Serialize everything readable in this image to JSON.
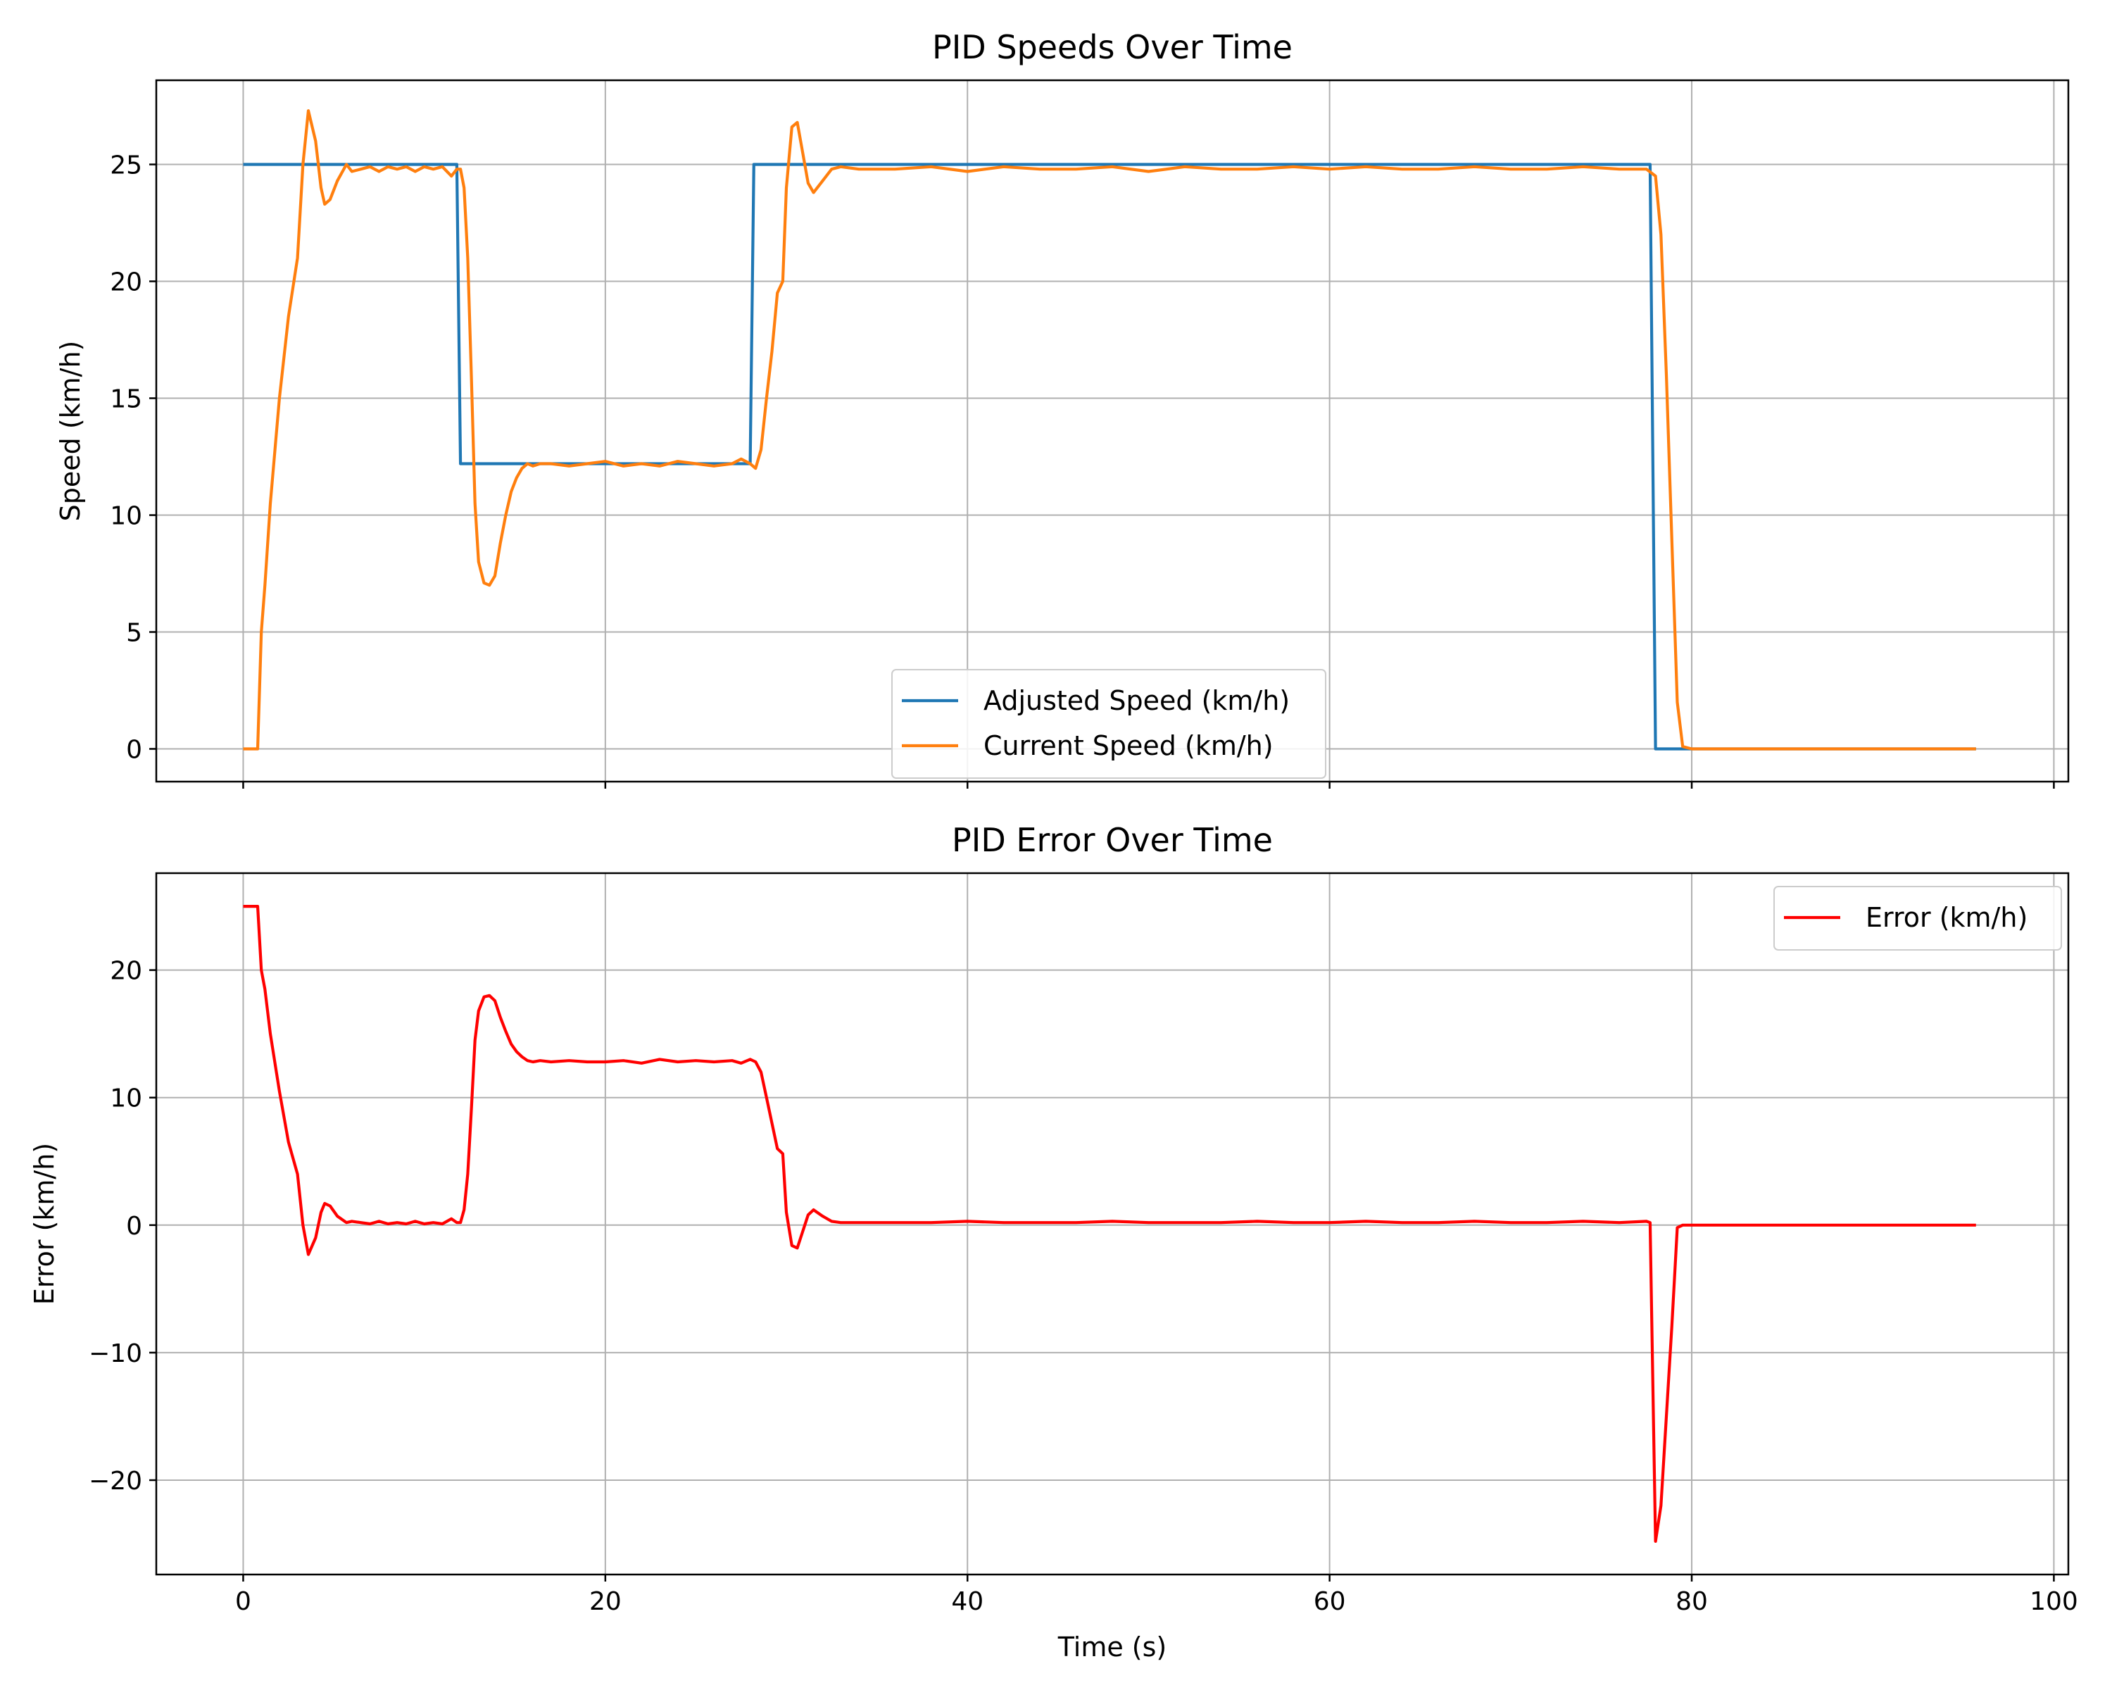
{
  "chart_data": [
    {
      "type": "line",
      "title": "PID Speeds Over Time",
      "xlabel": "",
      "ylabel": "Speed (km/h)",
      "xlim": [
        -4.8,
        100.8
      ],
      "ylim": [
        -1.4,
        28.6
      ],
      "xticks": [
        0,
        20,
        40,
        60,
        80,
        100
      ],
      "yticks": [
        0,
        5,
        10,
        15,
        20,
        25
      ],
      "grid": true,
      "legend": "lower center",
      "series": [
        {
          "name": "Adjusted Speed (km/h)",
          "color": "#1f77b4",
          "x": [
            0,
            11.8,
            12.0,
            28.0,
            28.2,
            77.7,
            78.0,
            95.7
          ],
          "y": [
            25,
            25,
            12.2,
            12.2,
            25,
            25,
            0,
            0
          ]
        },
        {
          "name": "Current Speed (km/h)",
          "color": "#ff7f0e",
          "x": [
            0,
            0.8,
            1.0,
            1.2,
            1.5,
            2.0,
            2.5,
            3.0,
            3.3,
            3.6,
            4.0,
            4.3,
            4.5,
            4.8,
            5.2,
            5.7,
            6.0,
            6.5,
            7.0,
            7.5,
            8.0,
            8.5,
            9.0,
            9.5,
            10.0,
            10.5,
            11.0,
            11.5,
            11.8,
            12.0,
            12.2,
            12.4,
            12.6,
            12.8,
            13.0,
            13.3,
            13.6,
            13.9,
            14.2,
            14.5,
            14.8,
            15.1,
            15.4,
            15.7,
            16.0,
            16.4,
            17.0,
            18.0,
            19.0,
            20.0,
            21.0,
            22.0,
            23.0,
            24.0,
            25.0,
            26.0,
            27.0,
            27.5,
            28.0,
            28.3,
            28.6,
            28.9,
            29.2,
            29.5,
            29.8,
            30.0,
            30.3,
            30.6,
            30.9,
            31.2,
            31.5,
            32.0,
            32.5,
            33.0,
            34.0,
            36.0,
            38.0,
            40.0,
            42.0,
            44.0,
            46.0,
            48.0,
            50.0,
            52.0,
            54.0,
            56.0,
            58.0,
            60.0,
            62.0,
            64.0,
            66.0,
            68.0,
            70.0,
            72.0,
            74.0,
            76.0,
            77.5,
            78.0,
            78.3,
            78.6,
            78.9,
            79.2,
            79.5,
            80.0,
            95.7
          ],
          "y": [
            0,
            0,
            5,
            7,
            10.5,
            15,
            18.5,
            21,
            25,
            27.3,
            26,
            24,
            23.3,
            23.5,
            24.3,
            25,
            24.7,
            24.8,
            24.9,
            24.7,
            24.9,
            24.8,
            24.9,
            24.7,
            24.9,
            24.8,
            24.9,
            24.5,
            24.8,
            24.8,
            24,
            21,
            16,
            10.5,
            8,
            7.1,
            7,
            7.4,
            8.8,
            10,
            11,
            11.6,
            12,
            12.2,
            12.1,
            12.2,
            12.2,
            12.1,
            12.2,
            12.3,
            12.1,
            12.2,
            12.1,
            12.3,
            12.2,
            12.1,
            12.2,
            12.4,
            12.2,
            12.0,
            12.8,
            15,
            17,
            19.5,
            20,
            24,
            26.6,
            26.8,
            25.5,
            24.2,
            23.8,
            24.3,
            24.8,
            24.9,
            24.8,
            24.8,
            24.9,
            24.7,
            24.9,
            24.8,
            24.8,
            24.9,
            24.7,
            24.9,
            24.8,
            24.8,
            24.9,
            24.8,
            24.9,
            24.8,
            24.8,
            24.9,
            24.8,
            24.8,
            24.9,
            24.8,
            24.8,
            24.5,
            22,
            16,
            9,
            2,
            0.1,
            0,
            0
          ]
        }
      ]
    },
    {
      "type": "line",
      "title": "PID Error Over Time",
      "xlabel": "Time (s)",
      "ylabel": "Error (km/h)",
      "xlim": [
        -4.8,
        100.8
      ],
      "ylim": [
        -27.4,
        27.6
      ],
      "xticks": [
        0,
        20,
        40,
        60,
        80,
        100
      ],
      "yticks": [
        -20,
        -10,
        0,
        10,
        20
      ],
      "xticklabels": [
        "0",
        "20",
        "40",
        "60",
        "80",
        "100"
      ],
      "yticklabels": [
        "−20",
        "−10",
        "0",
        "10",
        "20"
      ],
      "grid": true,
      "legend": "upper right",
      "series": [
        {
          "name": "Error (km/h)",
          "color": "#ff0000",
          "x": [
            0,
            0.8,
            1.0,
            1.2,
            1.5,
            2.0,
            2.5,
            3.0,
            3.3,
            3.6,
            4.0,
            4.3,
            4.5,
            4.8,
            5.2,
            5.7,
            6.0,
            6.5,
            7.0,
            7.5,
            8.0,
            8.5,
            9.0,
            9.5,
            10.0,
            10.5,
            11.0,
            11.5,
            11.8,
            12.0,
            12.2,
            12.4,
            12.6,
            12.8,
            13.0,
            13.3,
            13.6,
            13.9,
            14.2,
            14.5,
            14.8,
            15.1,
            15.4,
            15.7,
            16.0,
            16.4,
            17.0,
            18.0,
            19.0,
            20.0,
            21.0,
            22.0,
            23.0,
            24.0,
            25.0,
            26.0,
            27.0,
            27.5,
            28.0,
            28.3,
            28.6,
            28.9,
            29.2,
            29.5,
            29.8,
            30.0,
            30.3,
            30.6,
            30.9,
            31.2,
            31.5,
            32.0,
            32.5,
            33.0,
            34.0,
            36.0,
            38.0,
            40.0,
            42.0,
            44.0,
            46.0,
            48.0,
            50.0,
            52.0,
            54.0,
            56.0,
            58.0,
            60.0,
            62.0,
            64.0,
            66.0,
            68.0,
            70.0,
            72.0,
            74.0,
            76.0,
            77.5,
            77.7,
            78.0,
            78.3,
            78.6,
            78.9,
            79.2,
            79.5,
            80.0,
            95.7
          ],
          "y": [
            25,
            25,
            20,
            18.5,
            15,
            10.5,
            6.5,
            4,
            0,
            -2.3,
            -1,
            1,
            1.7,
            1.5,
            0.7,
            0.2,
            0.3,
            0.2,
            0.1,
            0.3,
            0.1,
            0.2,
            0.1,
            0.3,
            0.1,
            0.2,
            0.1,
            0.5,
            0.2,
            0.2,
            1.2,
            4,
            9,
            14.5,
            16.8,
            17.9,
            18,
            17.6,
            16.3,
            15.2,
            14.2,
            13.6,
            13.2,
            12.9,
            12.8,
            12.9,
            12.8,
            12.9,
            12.8,
            12.8,
            12.9,
            12.7,
            13,
            12.8,
            12.9,
            12.8,
            12.9,
            12.7,
            13.0,
            12.8,
            12.0,
            10,
            8,
            6,
            5.6,
            1,
            -1.6,
            -1.8,
            -0.5,
            0.8,
            1.2,
            0.7,
            0.3,
            0.2,
            0.2,
            0.2,
            0.2,
            0.3,
            0.2,
            0.2,
            0.2,
            0.3,
            0.2,
            0.2,
            0.2,
            0.3,
            0.2,
            0.2,
            0.3,
            0.2,
            0.2,
            0.3,
            0.2,
            0.2,
            0.3,
            0.2,
            0.3,
            0.2,
            -24.8,
            -22,
            -15,
            -8,
            -0.2,
            0,
            0,
            0
          ]
        }
      ]
    }
  ]
}
